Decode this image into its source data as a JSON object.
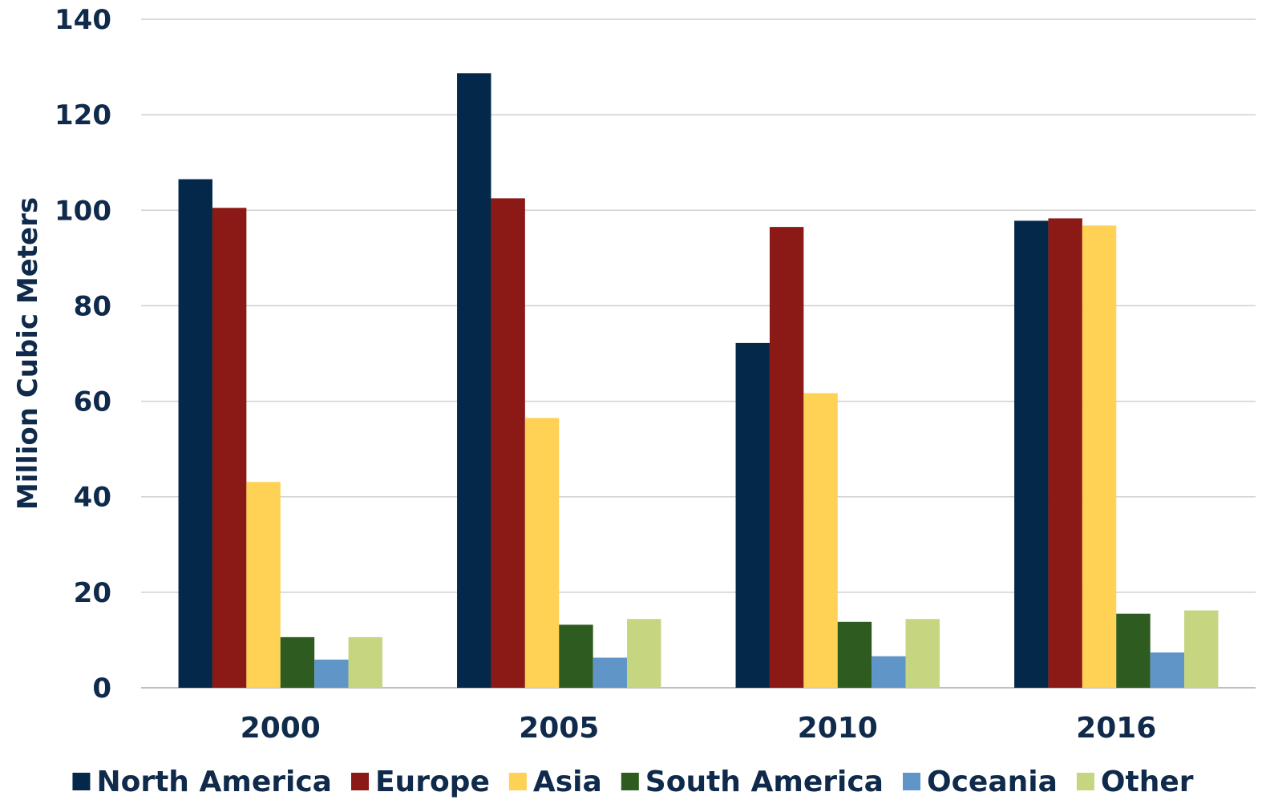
{
  "chart_data": {
    "type": "bar",
    "title": "",
    "xlabel": "",
    "ylabel": "Million Cubic Meters",
    "ylim": [
      0,
      140
    ],
    "yticks": [
      0,
      20,
      40,
      60,
      80,
      100,
      120,
      140
    ],
    "grid": true,
    "legend_position": "bottom",
    "categories": [
      "2000",
      "2005",
      "2010",
      "2016"
    ],
    "series": [
      {
        "name": "North America",
        "color": "#03284a",
        "values": [
          106.5,
          128.7,
          72.2,
          97.8
        ]
      },
      {
        "name": "Europe",
        "color": "#8b1915",
        "values": [
          100.5,
          102.5,
          96.5,
          98.3
        ]
      },
      {
        "name": "Asia",
        "color": "#ffd154",
        "values": [
          43.1,
          56.5,
          61.7,
          96.8
        ]
      },
      {
        "name": "South America",
        "color": "#2e5b1f",
        "values": [
          10.6,
          13.2,
          13.8,
          15.5
        ]
      },
      {
        "name": "Oceania",
        "color": "#6095c8",
        "values": [
          5.9,
          6.3,
          6.6,
          7.4
        ]
      },
      {
        "name": "Other",
        "color": "#c6d580",
        "values": [
          10.6,
          14.4,
          14.4,
          16.2
        ]
      }
    ]
  }
}
